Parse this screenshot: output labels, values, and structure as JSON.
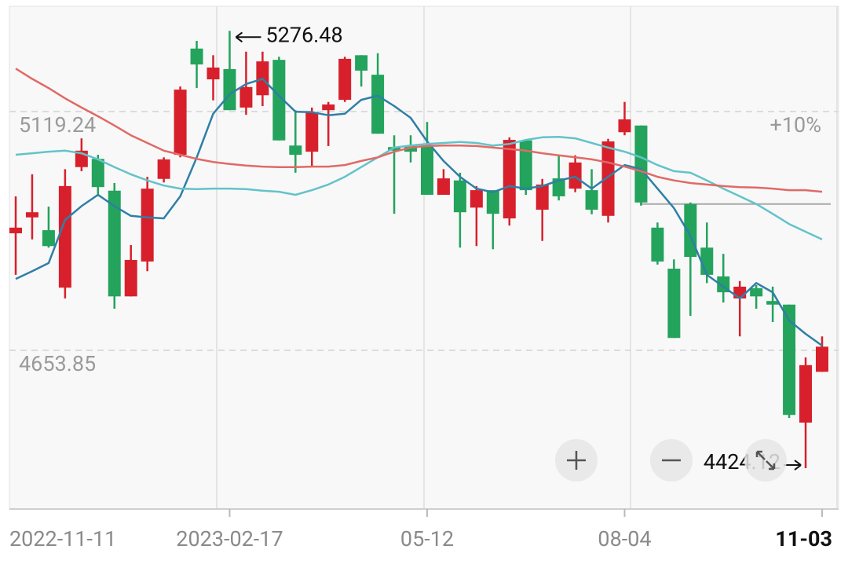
{
  "chart_data": {
    "type": "candlestick",
    "x": [
      "2022-11-11",
      null,
      null,
      null,
      null,
      null,
      null,
      null,
      null,
      null,
      null,
      null,
      null,
      "2023-02-17",
      null,
      null,
      null,
      null,
      null,
      null,
      null,
      null,
      null,
      null,
      null,
      "05-12",
      null,
      null,
      null,
      null,
      null,
      null,
      null,
      null,
      null,
      null,
      null,
      "08-04",
      null,
      null,
      null,
      null,
      null,
      null,
      null,
      null,
      null,
      null,
      null,
      "11-03"
    ],
    "open": [
      4882,
      4913,
      4888,
      4776,
      5011,
      5027,
      4965,
      4759,
      4827,
      4988,
      5035,
      5242,
      5182,
      5202,
      5127,
      5151,
      5220,
      5053,
      5041,
      5122,
      5142,
      5229,
      5191,
      5050,
      5053,
      5053,
      4957,
      4985,
      4932,
      4966,
      4911,
      5063,
      4928,
      4989,
      4969,
      4966,
      4916,
      5079,
      5092,
      4893,
      4813,
      4939,
      4854,
      4798,
      4755,
      4775,
      4750,
      4743,
      4513,
      4612
    ],
    "high": [
      4954,
      4997,
      4934,
      5007,
      5067,
      5035,
      4980,
      4859,
      4992,
      5030,
      5168,
      5257,
      5229,
      5276.48,
      5236,
      5236,
      5226,
      5122,
      5127,
      5138,
      5226,
      5229,
      5233,
      5073,
      5073,
      5099,
      5007,
      5000,
      4974,
      4966,
      5069,
      5064,
      4988,
      5034,
      5034,
      5007,
      5066,
      5138,
      5092,
      4903,
      4831,
      4942,
      4903,
      4842,
      4789,
      4781,
      4778,
      4743,
      4640,
      4681
    ],
    "low": [
      4801,
      4870,
      4854,
      4755,
      5003,
      4954,
      4735,
      4759,
      4808,
      4981,
      5030,
      5165,
      5141,
      5122,
      5113,
      5130,
      5063,
      5000,
      5011,
      5052,
      5138,
      5168,
      5076,
      4920,
      5020,
      4957,
      4957,
      4854,
      4857,
      4851,
      4897,
      4957,
      4867,
      4946,
      4962,
      4919,
      4903,
      5073,
      4936,
      4821,
      4678,
      4721,
      4785,
      4747,
      4681,
      4735,
      4709,
      4522,
      4424.12,
      4612
    ],
    "close": [
      4893,
      4923,
      4857,
      4974,
      5043,
      4972,
      4759,
      4830,
      4969,
      5026,
      5162,
      5211,
      5205,
      5122,
      5167,
      5217,
      5063,
      5035,
      5118,
      5133,
      5222,
      5199,
      5076,
      5043,
      5041,
      4957,
      4989,
      4923,
      4966,
      4920,
      5064,
      4966,
      4977,
      4954,
      5020,
      4928,
      5061,
      5104,
      4942,
      4827,
      4678,
      4836,
      4801,
      4767,
      4778,
      4759,
      4743,
      4528,
      4625,
      4661
    ],
    "up_color": "#d7202b",
    "down_color": "#23a35c",
    "lines": [
      {
        "color": "#2f7fa6",
        "values": [
          4793,
          4808,
          4824,
          4908,
          4935,
          4957,
          4935,
          4916,
          4913,
          4911,
          4954,
          5030,
          5115,
          5153,
          5173,
          5183,
          5150,
          5119,
          5118,
          5112,
          5115,
          5142,
          5150,
          5130,
          5107,
          5061,
          5023,
          4992,
          4969,
          4962,
          4974,
          4969,
          4974,
          4985,
          4992,
          4969,
          4992,
          5015,
          5007,
          4969,
          4931,
          4877,
          4801,
          4778,
          4755,
          4785,
          4767,
          4712,
          4686,
          4663
        ]
      },
      {
        "color": "#63c3c9",
        "values": [
          5035,
          5038,
          5041,
          5043,
          5038,
          5026,
          5011,
          4997,
          4985,
          4975,
          4969,
          4968,
          4969,
          4969,
          4968,
          4965,
          4963,
          4957,
          4966,
          4977,
          4992,
          5011,
          5030,
          5049,
          5053,
          5056,
          5058,
          5060,
          5058,
          5053,
          5056,
          5064,
          5069,
          5070,
          5067,
          5058,
          5049,
          5041,
          5030,
          5015,
          5003,
          5000,
          4985,
          4969,
          4954,
          4939,
          4920,
          4900,
          4885,
          4870
        ]
      },
      {
        "color": "#e06a66",
        "values": [
          5203,
          5183,
          5165,
          5145,
          5127,
          5110,
          5092,
          5073,
          5058,
          5043,
          5035,
          5027,
          5021,
          5017,
          5014,
          5012,
          5011,
          5011,
          5012,
          5012,
          5015,
          5023,
          5030,
          5041,
          5049,
          5052,
          5053,
          5053,
          5052,
          5049,
          5046,
          5043,
          5038,
          5034,
          5030,
          5026,
          5020,
          5012,
          5003,
          4992,
          4985,
          4980,
          4977,
          4974,
          4972,
          4971,
          4969,
          4966,
          4966,
          4963
        ]
      }
    ],
    "price_line": 4939,
    "ylim": [
      4344.6,
      5324.4
    ],
    "yticks": [
      5119.24,
      4653.85
    ],
    "y2lim": [
      -6.65,
      14.41
    ],
    "y2ticks": [
      {
        "value": 10,
        "label": "+10%"
      }
    ],
    "grid": true
  }
}
